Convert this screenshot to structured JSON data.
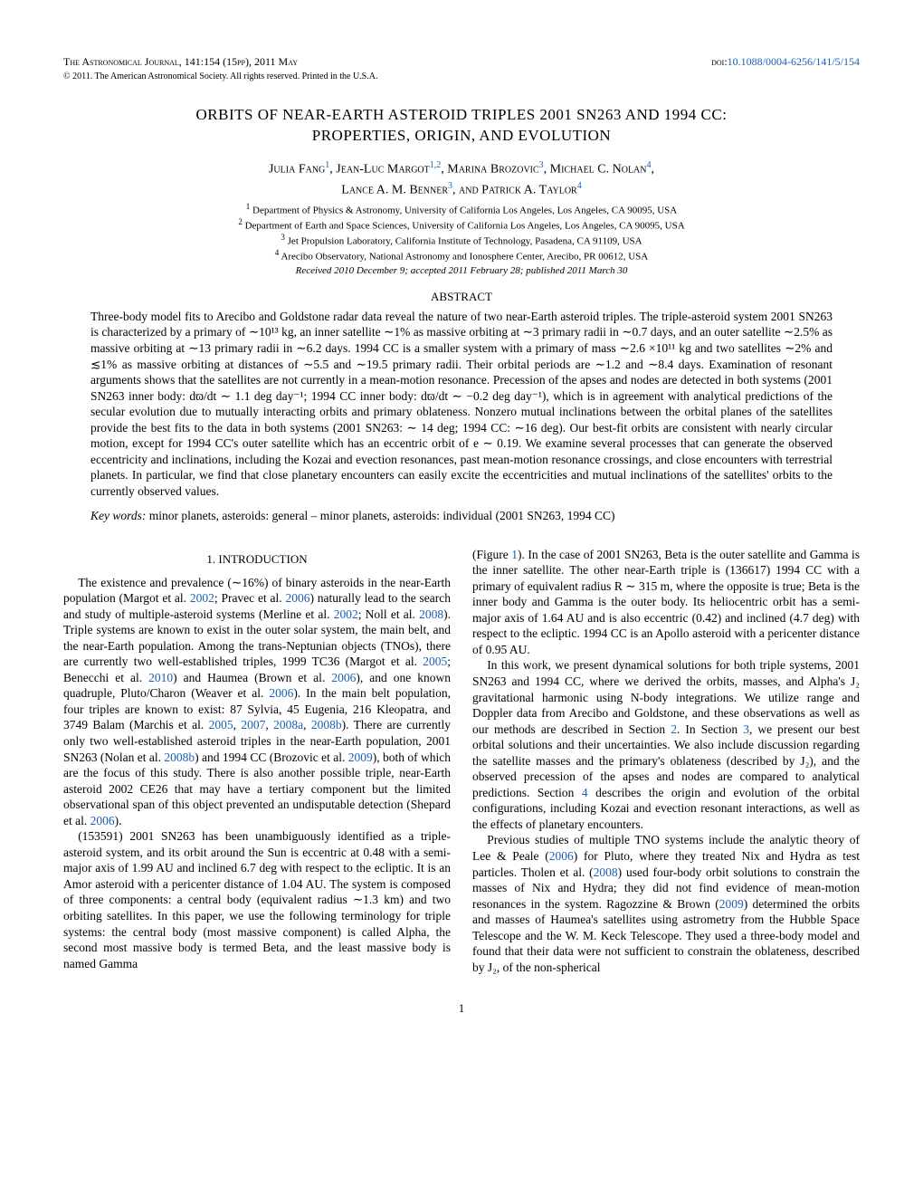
{
  "header": {
    "journal": "The Astronomical Journal, 141:154 (15pp), 2011 May",
    "doi_label": "doi:",
    "doi_link": "10.1088/0004-6256/141/5/154",
    "copyright": "© 2011. The American Astronomical Society. All rights reserved. Printed in the U.S.A."
  },
  "title_line1": "ORBITS OF NEAR-EARTH ASTEROID TRIPLES 2001 SN263 AND 1994 CC:",
  "title_line2": "PROPERTIES, ORIGIN, AND EVOLUTION",
  "authors_line1_parts": {
    "a1": "Julia Fang",
    "s1": "1",
    "a2": ", Jean-Luc Margot",
    "s2": "1,2",
    "a3": ", Marina Brozovic",
    "s3": "3",
    "a4": ", Michael C. Nolan",
    "s4": "4",
    "tail": ","
  },
  "authors_line2_parts": {
    "a1": "Lance A. M. Benner",
    "s1": "3",
    "a2": ", and Patrick A. Taylor",
    "s2": "4"
  },
  "affiliations": [
    "Department of Physics & Astronomy, University of California Los Angeles, Los Angeles, CA 90095, USA",
    "Department of Earth and Space Sciences, University of California Los Angeles, Los Angeles, CA 90095, USA",
    "Jet Propulsion Laboratory, California Institute of Technology, Pasadena, CA 91109, USA",
    "Arecibo Observatory, National Astronomy and Ionosphere Center, Arecibo, PR 00612, USA"
  ],
  "received": "Received 2010 December 9; accepted 2011 February 28; published 2011 March 30",
  "abstract_heading": "ABSTRACT",
  "abstract": "Three-body model fits to Arecibo and Goldstone radar data reveal the nature of two near-Earth asteroid triples. The triple-asteroid system 2001 SN263 is characterized by a primary of ∼10¹³ kg, an inner satellite ∼1% as massive orbiting at ∼3 primary radii in ∼0.7 days, and an outer satellite ∼2.5% as massive orbiting at ∼13 primary radii in ∼6.2 days. 1994 CC is a smaller system with a primary of mass ∼2.6 ×10¹¹ kg and two satellites ∼2% and ≲1% as massive orbiting at distances of ∼5.5 and ∼19.5 primary radii. Their orbital periods are ∼1.2 and ∼8.4 days. Examination of resonant arguments shows that the satellites are not currently in a mean-motion resonance. Precession of the apses and nodes are detected in both systems (2001 SN263 inner body: dϖ/dt ∼ 1.1 deg day⁻¹; 1994 CC inner body: dϖ/dt ∼ −0.2 deg day⁻¹), which is in agreement with analytical predictions of the secular evolution due to mutually interacting orbits and primary oblateness. Nonzero mutual inclinations between the orbital planes of the satellites provide the best fits to the data in both systems (2001 SN263: ∼ 14 deg; 1994 CC: ∼16 deg). Our best-fit orbits are consistent with nearly circular motion, except for 1994 CC's outer satellite which has an eccentric orbit of e ∼ 0.19. We examine several processes that can generate the observed eccentricity and inclinations, including the Kozai and evection resonances, past mean-motion resonance crossings, and close encounters with terrestrial planets. In particular, we find that close planetary encounters can easily excite the eccentricities and mutual inclinations of the satellites' orbits to the currently observed values.",
  "keywords_label": "Key words:",
  "keywords_text": "minor planets, asteroids: general – minor planets, asteroids: individual (2001 SN263, 1994 CC)",
  "section_heading": "1. INTRODUCTION",
  "paragraphs": {
    "p1a": "The existence and prevalence (∼16%) of binary asteroids in the near-Earth population (Margot et al. ",
    "p1y1": "2002",
    "p1b": "; Pravec et al. ",
    "p1y2": "2006",
    "p1c": ") naturally lead to the search and study of multiple-asteroid systems (Merline et al. ",
    "p1y3": "2002",
    "p1d": "; Noll et al. ",
    "p1y4": "2008",
    "p1e": "). Triple systems are known to exist in the outer solar system, the main belt, and the near-Earth population. Among the trans-Neptunian objects (TNOs), there are currently two well-established triples, 1999 TC36 (Margot et al. ",
    "p1y5": "2005",
    "p1f": "; Benecchi et al. ",
    "p1y6": "2010",
    "p1g": ") and Haumea (Brown et al. ",
    "p1y7": "2006",
    "p1h": "), and one known quadruple, Pluto/Charon (Weaver et al. ",
    "p1y8": "2006",
    "p1i": "). In the main belt population, four triples are known to exist: 87 Sylvia, 45 Eugenia, 216 Kleopatra, and 3749 Balam (Marchis et al. ",
    "p1y9": "2005",
    "p1j": ", ",
    "p1y10": "2007",
    "p1k": ", ",
    "p1y11": "2008a",
    "p1l": ", ",
    "p1y12": "2008b",
    "p1m": "). There are currently only two well-established asteroid triples in the near-Earth population, 2001 SN263 (Nolan et al. ",
    "p1y13": "2008b",
    "p1n": ") and 1994 CC (Brozovic et al. ",
    "p1y14": "2009",
    "p1o": "), both of which are the focus of this study. There is also another possible triple, near-Earth asteroid 2002 CE26 that may have a tertiary component but the limited observational span of this object prevented an undisputable detection (Shepard et al. ",
    "p1y15": "2006",
    "p1p": ").",
    "p2": "(153591) 2001 SN263 has been unambiguously identified as a triple-asteroid system, and its orbit around the Sun is eccentric at 0.48 with a semi-major axis of 1.99 AU and inclined 6.7 deg with respect to the ecliptic. It is an Amor asteroid with a pericenter distance of 1.04 AU. The system is composed of three components: a central body (equivalent radius ∼1.3 km) and two orbiting satellites. In this paper, we use the following terminology for triple systems: the central body (most massive component) is called Alpha, the second most massive body is termed Beta, and the least massive body is named Gamma",
    "p3a": "(Figure ",
    "p3y1": "1",
    "p3b": "). In the case of 2001 SN263, Beta is the outer satellite and Gamma is the inner satellite. The other near-Earth triple is (136617) 1994 CC with a primary of equivalent radius R ∼ 315 m, where the opposite is true; Beta is the inner body and Gamma is the outer body. Its heliocentric orbit has a semi-major axis of 1.64 AU and is also eccentric (0.42) and inclined (4.7 deg) with respect to the ecliptic. 1994 CC is an Apollo asteroid with a pericenter distance of 0.95 AU.",
    "p4a": "In this work, we present dynamical solutions for both triple systems, 2001 SN263 and 1994 CC, where we derived the orbits, masses, and Alpha's J₂ gravitational harmonic using N-body integrations. We utilize range and Doppler data from Arecibo and Goldstone, and these observations as well as our methods are described in Section ",
    "p4y1": "2",
    "p4b": ". In Section ",
    "p4y2": "3",
    "p4c": ", we present our best orbital solutions and their uncertainties. We also include discussion regarding the satellite masses and the primary's oblateness (described by J₂), and the observed precession of the apses and nodes are compared to analytical predictions. Section ",
    "p4y3": "4",
    "p4d": " describes the origin and evolution of the orbital configurations, including Kozai and evection resonant interactions, as well as the effects of planetary encounters.",
    "p5a": "Previous studies of multiple TNO systems include the analytic theory of Lee & Peale (",
    "p5y1": "2006",
    "p5b": ") for Pluto, where they treated Nix and Hydra as test particles. Tholen et al. (",
    "p5y2": "2008",
    "p5c": ") used four-body orbit solutions to constrain the masses of Nix and Hydra; they did not find evidence of mean-motion resonances in the system. Ragozzine & Brown (",
    "p5y3": "2009",
    "p5d": ") determined the orbits and masses of Haumea's satellites using astrometry from the Hubble Space Telescope and the W. M. Keck Telescope. They used a three-body model and found that their data were not sufficient to constrain the oblateness, described by J₂, of the non-spherical"
  },
  "page_number": "1",
  "colors": {
    "link": "#1a5fb4",
    "text": "#000000",
    "background": "#ffffff"
  }
}
